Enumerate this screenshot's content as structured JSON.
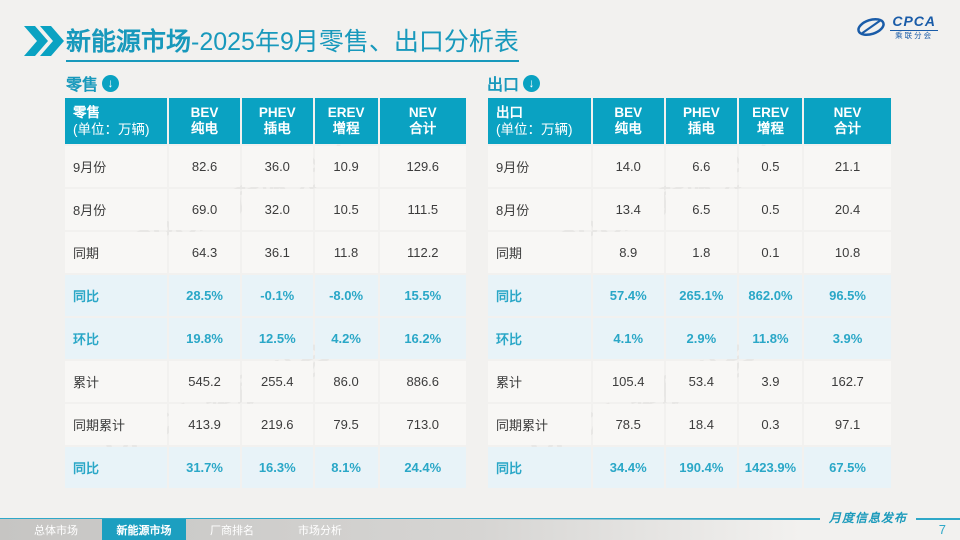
{
  "title": {
    "bold": "新能源市场",
    "rest": "-2025年9月零售、出口分析表"
  },
  "logo": {
    "cpca": "CPCA",
    "sub": "乘联分会"
  },
  "watermark": "CPCA 乘联分会",
  "footer": {
    "note": "月度信息发布",
    "page": "7"
  },
  "nav": {
    "tabs": [
      {
        "label": "总体市场",
        "active": false
      },
      {
        "label": "新能源市场",
        "active": true
      },
      {
        "label": "厂商排名",
        "active": false
      },
      {
        "label": "市场分析",
        "active": false
      }
    ]
  },
  "accent_color": "#0AA2C2",
  "tables": [
    {
      "section_label": "零售",
      "corner_label": "零售",
      "unit": "(单位：万辆)",
      "columns": [
        {
          "en": "BEV",
          "zh": "纯电"
        },
        {
          "en": "PHEV",
          "zh": "插电"
        },
        {
          "en": "EREV",
          "zh": "增程"
        },
        {
          "en": "NEV",
          "zh": "合计"
        }
      ],
      "rows": [
        {
          "label": "9月份",
          "highlight": false,
          "values": [
            "82.6",
            "36.0",
            "10.9",
            "129.6"
          ]
        },
        {
          "label": "8月份",
          "highlight": false,
          "values": [
            "69.0",
            "32.0",
            "10.5",
            "111.5"
          ]
        },
        {
          "label": "同期",
          "highlight": false,
          "values": [
            "64.3",
            "36.1",
            "11.8",
            "112.2"
          ]
        },
        {
          "label": "同比",
          "highlight": true,
          "values": [
            "28.5%",
            "-0.1%",
            "-8.0%",
            "15.5%"
          ]
        },
        {
          "label": "环比",
          "highlight": true,
          "values": [
            "19.8%",
            "12.5%",
            "4.2%",
            "16.2%"
          ]
        },
        {
          "label": "累计",
          "highlight": false,
          "values": [
            "545.2",
            "255.4",
            "86.0",
            "886.6"
          ]
        },
        {
          "label": "同期累计",
          "highlight": false,
          "values": [
            "413.9",
            "219.6",
            "79.5",
            "713.0"
          ]
        },
        {
          "label": "同比",
          "highlight": true,
          "values": [
            "31.7%",
            "16.3%",
            "8.1%",
            "24.4%"
          ]
        }
      ]
    },
    {
      "section_label": "出口",
      "corner_label": "出口",
      "unit": "(单位：万辆)",
      "columns": [
        {
          "en": "BEV",
          "zh": "纯电"
        },
        {
          "en": "PHEV",
          "zh": "插电"
        },
        {
          "en": "EREV",
          "zh": "增程"
        },
        {
          "en": "NEV",
          "zh": "合计"
        }
      ],
      "rows": [
        {
          "label": "9月份",
          "highlight": false,
          "values": [
            "14.0",
            "6.6",
            "0.5",
            "21.1"
          ]
        },
        {
          "label": "8月份",
          "highlight": false,
          "values": [
            "13.4",
            "6.5",
            "0.5",
            "20.4"
          ]
        },
        {
          "label": "同期",
          "highlight": false,
          "values": [
            "8.9",
            "1.8",
            "0.1",
            "10.8"
          ]
        },
        {
          "label": "同比",
          "highlight": true,
          "values": [
            "57.4%",
            "265.1%",
            "862.0%",
            "96.5%"
          ]
        },
        {
          "label": "环比",
          "highlight": true,
          "values": [
            "4.1%",
            "2.9%",
            "11.8%",
            "3.9%"
          ]
        },
        {
          "label": "累计",
          "highlight": false,
          "values": [
            "105.4",
            "53.4",
            "3.9",
            "162.7"
          ]
        },
        {
          "label": "同期累计",
          "highlight": false,
          "values": [
            "78.5",
            "18.4",
            "0.3",
            "97.1"
          ]
        },
        {
          "label": "同比",
          "highlight": true,
          "values": [
            "34.4%",
            "190.4%",
            "1423.9%",
            "67.5%"
          ]
        }
      ]
    }
  ]
}
